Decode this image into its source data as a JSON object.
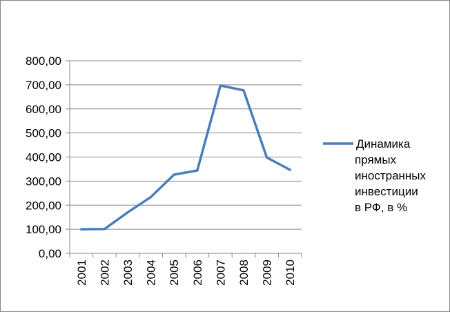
{
  "chart_data": {
    "type": "line",
    "categories": [
      "2001",
      "2002",
      "2003",
      "2004",
      "2005",
      "2006",
      "2007",
      "2008",
      "2009",
      "2010"
    ],
    "series": [
      {
        "name": "Динамика прямых иностранных инвестиции в РФ, в %",
        "legend_lines": [
          "Динамика",
          "прямых",
          "иностранных",
          "инвестиции",
          "в РФ, в %"
        ],
        "values": [
          100,
          101,
          170,
          234,
          327,
          344,
          697,
          677,
          398,
          347
        ],
        "color": "#4A7EBB"
      }
    ],
    "ylim": [
      0,
      800
    ],
    "yticks": [
      0,
      100,
      200,
      300,
      400,
      500,
      600,
      700,
      800
    ],
    "ytick_labels": [
      "0,00",
      "100,00",
      "200,00",
      "300,00",
      "400,00",
      "500,00",
      "600,00",
      "700,00",
      "800,00"
    ],
    "grid": true,
    "legend_position": "right"
  }
}
